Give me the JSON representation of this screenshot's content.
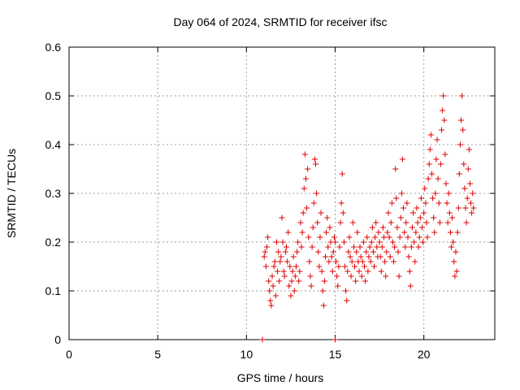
{
  "chart_data": {
    "type": "scatter",
    "title": "Day 064 of 2024, SRMTID for receiver ifsc",
    "xlabel": "GPS time / hours",
    "ylabel": "SRMTID / TECUs",
    "xlim": [
      0,
      24
    ],
    "ylim": [
      0,
      0.6
    ],
    "xticks": [
      0,
      5,
      10,
      15,
      20
    ],
    "xtick_labels": [
      "0",
      "5",
      "10",
      "15",
      "20"
    ],
    "yticks": [
      0,
      0.1,
      0.2,
      0.3,
      0.4,
      0.5,
      0.6
    ],
    "ytick_labels": [
      "0",
      "0.1",
      "0.2",
      "0.3",
      "0.4",
      "0.5",
      "0.6"
    ],
    "grid": true,
    "marker": "+",
    "series": [
      {
        "name": "SRMTID",
        "color": "#e00000",
        "points": [
          [
            10.9,
            0.0
          ],
          [
            15.0,
            0.0
          ],
          [
            11.0,
            0.17
          ],
          [
            11.05,
            0.18
          ],
          [
            11.1,
            0.15
          ],
          [
            11.15,
            0.19
          ],
          [
            11.2,
            0.21
          ],
          [
            11.25,
            0.12
          ],
          [
            11.3,
            0.1
          ],
          [
            11.35,
            0.08
          ],
          [
            11.4,
            0.07
          ],
          [
            11.45,
            0.13
          ],
          [
            11.5,
            0.11
          ],
          [
            11.55,
            0.15
          ],
          [
            11.6,
            0.16
          ],
          [
            11.65,
            0.09
          ],
          [
            11.7,
            0.2
          ],
          [
            11.75,
            0.14
          ],
          [
            11.8,
            0.18
          ],
          [
            11.85,
            0.12
          ],
          [
            11.9,
            0.16
          ],
          [
            11.95,
            0.17
          ],
          [
            12.0,
            0.25
          ],
          [
            12.05,
            0.2
          ],
          [
            12.1,
            0.14
          ],
          [
            12.15,
            0.13
          ],
          [
            12.2,
            0.18
          ],
          [
            12.25,
            0.19
          ],
          [
            12.3,
            0.16
          ],
          [
            12.35,
            0.22
          ],
          [
            12.4,
            0.11
          ],
          [
            12.45,
            0.15
          ],
          [
            12.5,
            0.09
          ],
          [
            12.55,
            0.12
          ],
          [
            12.6,
            0.14
          ],
          [
            12.65,
            0.17
          ],
          [
            12.7,
            0.1
          ],
          [
            12.75,
            0.13
          ],
          [
            12.8,
            0.15
          ],
          [
            12.85,
            0.18
          ],
          [
            12.9,
            0.2
          ],
          [
            12.95,
            0.12
          ],
          [
            13.0,
            0.14
          ],
          [
            13.05,
            0.24
          ],
          [
            13.1,
            0.19
          ],
          [
            13.15,
            0.22
          ],
          [
            13.2,
            0.26
          ],
          [
            13.25,
            0.31
          ],
          [
            13.3,
            0.38
          ],
          [
            13.35,
            0.33
          ],
          [
            13.4,
            0.27
          ],
          [
            13.45,
            0.35
          ],
          [
            13.5,
            0.21
          ],
          [
            13.55,
            0.16
          ],
          [
            13.6,
            0.13
          ],
          [
            13.65,
            0.11
          ],
          [
            13.7,
            0.19
          ],
          [
            13.75,
            0.23
          ],
          [
            13.8,
            0.28
          ],
          [
            13.85,
            0.37
          ],
          [
            13.9,
            0.36
          ],
          [
            13.95,
            0.3
          ],
          [
            14.0,
            0.24
          ],
          [
            14.05,
            0.18
          ],
          [
            14.1,
            0.15
          ],
          [
            14.15,
            0.21
          ],
          [
            14.2,
            0.26
          ],
          [
            14.25,
            0.14
          ],
          [
            14.3,
            0.1
          ],
          [
            14.35,
            0.07
          ],
          [
            14.4,
            0.12
          ],
          [
            14.45,
            0.17
          ],
          [
            14.5,
            0.22
          ],
          [
            14.55,
            0.25
          ],
          [
            14.6,
            0.19
          ],
          [
            14.65,
            0.16
          ],
          [
            14.7,
            0.23
          ],
          [
            14.75,
            0.2
          ],
          [
            14.8,
            0.17
          ],
          [
            14.85,
            0.14
          ],
          [
            14.9,
            0.18
          ],
          [
            14.95,
            0.21
          ],
          [
            15.0,
            0.2
          ],
          [
            15.05,
            0.16
          ],
          [
            15.1,
            0.13
          ],
          [
            15.15,
            0.11
          ],
          [
            15.2,
            0.15
          ],
          [
            15.25,
            0.19
          ],
          [
            15.3,
            0.24
          ],
          [
            15.35,
            0.28
          ],
          [
            15.4,
            0.34
          ],
          [
            15.45,
            0.26
          ],
          [
            15.5,
            0.2
          ],
          [
            15.55,
            0.15
          ],
          [
            15.6,
            0.1
          ],
          [
            15.65,
            0.08
          ],
          [
            15.7,
            0.14
          ],
          [
            15.75,
            0.18
          ],
          [
            15.8,
            0.21
          ],
          [
            15.85,
            0.17
          ],
          [
            15.9,
            0.13
          ],
          [
            15.95,
            0.16
          ],
          [
            16.0,
            0.24
          ],
          [
            16.05,
            0.19
          ],
          [
            16.1,
            0.15
          ],
          [
            16.15,
            0.12
          ],
          [
            16.2,
            0.18
          ],
          [
            16.25,
            0.22
          ],
          [
            16.3,
            0.16
          ],
          [
            16.35,
            0.14
          ],
          [
            16.4,
            0.19
          ],
          [
            16.45,
            0.17
          ],
          [
            16.5,
            0.13
          ],
          [
            16.55,
            0.16
          ],
          [
            16.6,
            0.2
          ],
          [
            16.65,
            0.15
          ],
          [
            16.7,
            0.12
          ],
          [
            16.75,
            0.18
          ],
          [
            16.8,
            0.21
          ],
          [
            16.85,
            0.14
          ],
          [
            16.9,
            0.17
          ],
          [
            16.95,
            0.19
          ],
          [
            17.0,
            0.16
          ],
          [
            17.05,
            0.2
          ],
          [
            17.1,
            0.23
          ],
          [
            17.15,
            0.18
          ],
          [
            17.2,
            0.15
          ],
          [
            17.25,
            0.21
          ],
          [
            17.3,
            0.24
          ],
          [
            17.35,
            0.19
          ],
          [
            17.4,
            0.17
          ],
          [
            17.45,
            0.22
          ],
          [
            17.5,
            0.2
          ],
          [
            17.55,
            0.17
          ],
          [
            17.6,
            0.14
          ],
          [
            17.65,
            0.19
          ],
          [
            17.7,
            0.23
          ],
          [
            17.75,
            0.21
          ],
          [
            17.8,
            0.16
          ],
          [
            17.85,
            0.13
          ],
          [
            17.9,
            0.18
          ],
          [
            17.95,
            0.22
          ],
          [
            18.0,
            0.26
          ],
          [
            18.05,
            0.21
          ],
          [
            18.1,
            0.17
          ],
          [
            18.15,
            0.24
          ],
          [
            18.2,
            0.28
          ],
          [
            18.25,
            0.2
          ],
          [
            18.3,
            0.16
          ],
          [
            18.35,
            0.19
          ],
          [
            18.4,
            0.35
          ],
          [
            18.45,
            0.29
          ],
          [
            18.5,
            0.23
          ],
          [
            18.55,
            0.18
          ],
          [
            18.6,
            0.13
          ],
          [
            18.65,
            0.21
          ],
          [
            18.7,
            0.25
          ],
          [
            18.75,
            0.3
          ],
          [
            18.8,
            0.37
          ],
          [
            18.85,
            0.27
          ],
          [
            18.9,
            0.22
          ],
          [
            18.95,
            0.19
          ],
          [
            19.0,
            0.24
          ],
          [
            19.05,
            0.28
          ],
          [
            19.1,
            0.21
          ],
          [
            19.15,
            0.17
          ],
          [
            19.2,
            0.14
          ],
          [
            19.25,
            0.11
          ],
          [
            19.3,
            0.19
          ],
          [
            19.35,
            0.23
          ],
          [
            19.4,
            0.26
          ],
          [
            19.45,
            0.2
          ],
          [
            19.5,
            0.16
          ],
          [
            19.55,
            0.22
          ],
          [
            19.6,
            0.27
          ],
          [
            19.65,
            0.24
          ],
          [
            19.7,
            0.19
          ],
          [
            19.75,
            0.21
          ],
          [
            19.8,
            0.25
          ],
          [
            19.85,
            0.29
          ],
          [
            19.9,
            0.23
          ],
          [
            19.95,
            0.2
          ],
          [
            20.0,
            0.26
          ],
          [
            20.05,
            0.31
          ],
          [
            20.1,
            0.28
          ],
          [
            20.15,
            0.24
          ],
          [
            20.2,
            0.21
          ],
          [
            20.25,
            0.33
          ],
          [
            20.3,
            0.36
          ],
          [
            20.35,
            0.39
          ],
          [
            20.4,
            0.42
          ],
          [
            20.45,
            0.34
          ],
          [
            20.5,
            0.29
          ],
          [
            20.55,
            0.25
          ],
          [
            20.6,
            0.22
          ],
          [
            20.65,
            0.3
          ],
          [
            20.7,
            0.37
          ],
          [
            20.75,
            0.41
          ],
          [
            20.8,
            0.33
          ],
          [
            20.85,
            0.28
          ],
          [
            20.9,
            0.24
          ],
          [
            20.95,
            0.36
          ],
          [
            21.0,
            0.43
          ],
          [
            21.05,
            0.47
          ],
          [
            21.1,
            0.5
          ],
          [
            21.15,
            0.45
          ],
          [
            21.2,
            0.38
          ],
          [
            21.25,
            0.32
          ],
          [
            21.3,
            0.28
          ],
          [
            21.35,
            0.24
          ],
          [
            21.4,
            0.3
          ],
          [
            21.45,
            0.26
          ],
          [
            21.5,
            0.22
          ],
          [
            21.55,
            0.19
          ],
          [
            21.6,
            0.25
          ],
          [
            21.65,
            0.2
          ],
          [
            21.7,
            0.16
          ],
          [
            21.75,
            0.13
          ],
          [
            21.8,
            0.18
          ],
          [
            21.85,
            0.14
          ],
          [
            21.9,
            0.22
          ],
          [
            21.95,
            0.27
          ],
          [
            22.0,
            0.34
          ],
          [
            22.05,
            0.4
          ],
          [
            22.1,
            0.45
          ],
          [
            22.15,
            0.5
          ],
          [
            22.2,
            0.43
          ],
          [
            22.25,
            0.36
          ],
          [
            22.3,
            0.31
          ],
          [
            22.35,
            0.27
          ],
          [
            22.4,
            0.24
          ],
          [
            22.45,
            0.29
          ],
          [
            22.5,
            0.35
          ],
          [
            22.55,
            0.39
          ],
          [
            22.6,
            0.32
          ],
          [
            22.65,
            0.28
          ],
          [
            22.7,
            0.26
          ],
          [
            22.75,
            0.3
          ],
          [
            22.8,
            0.27
          ]
        ]
      }
    ]
  }
}
